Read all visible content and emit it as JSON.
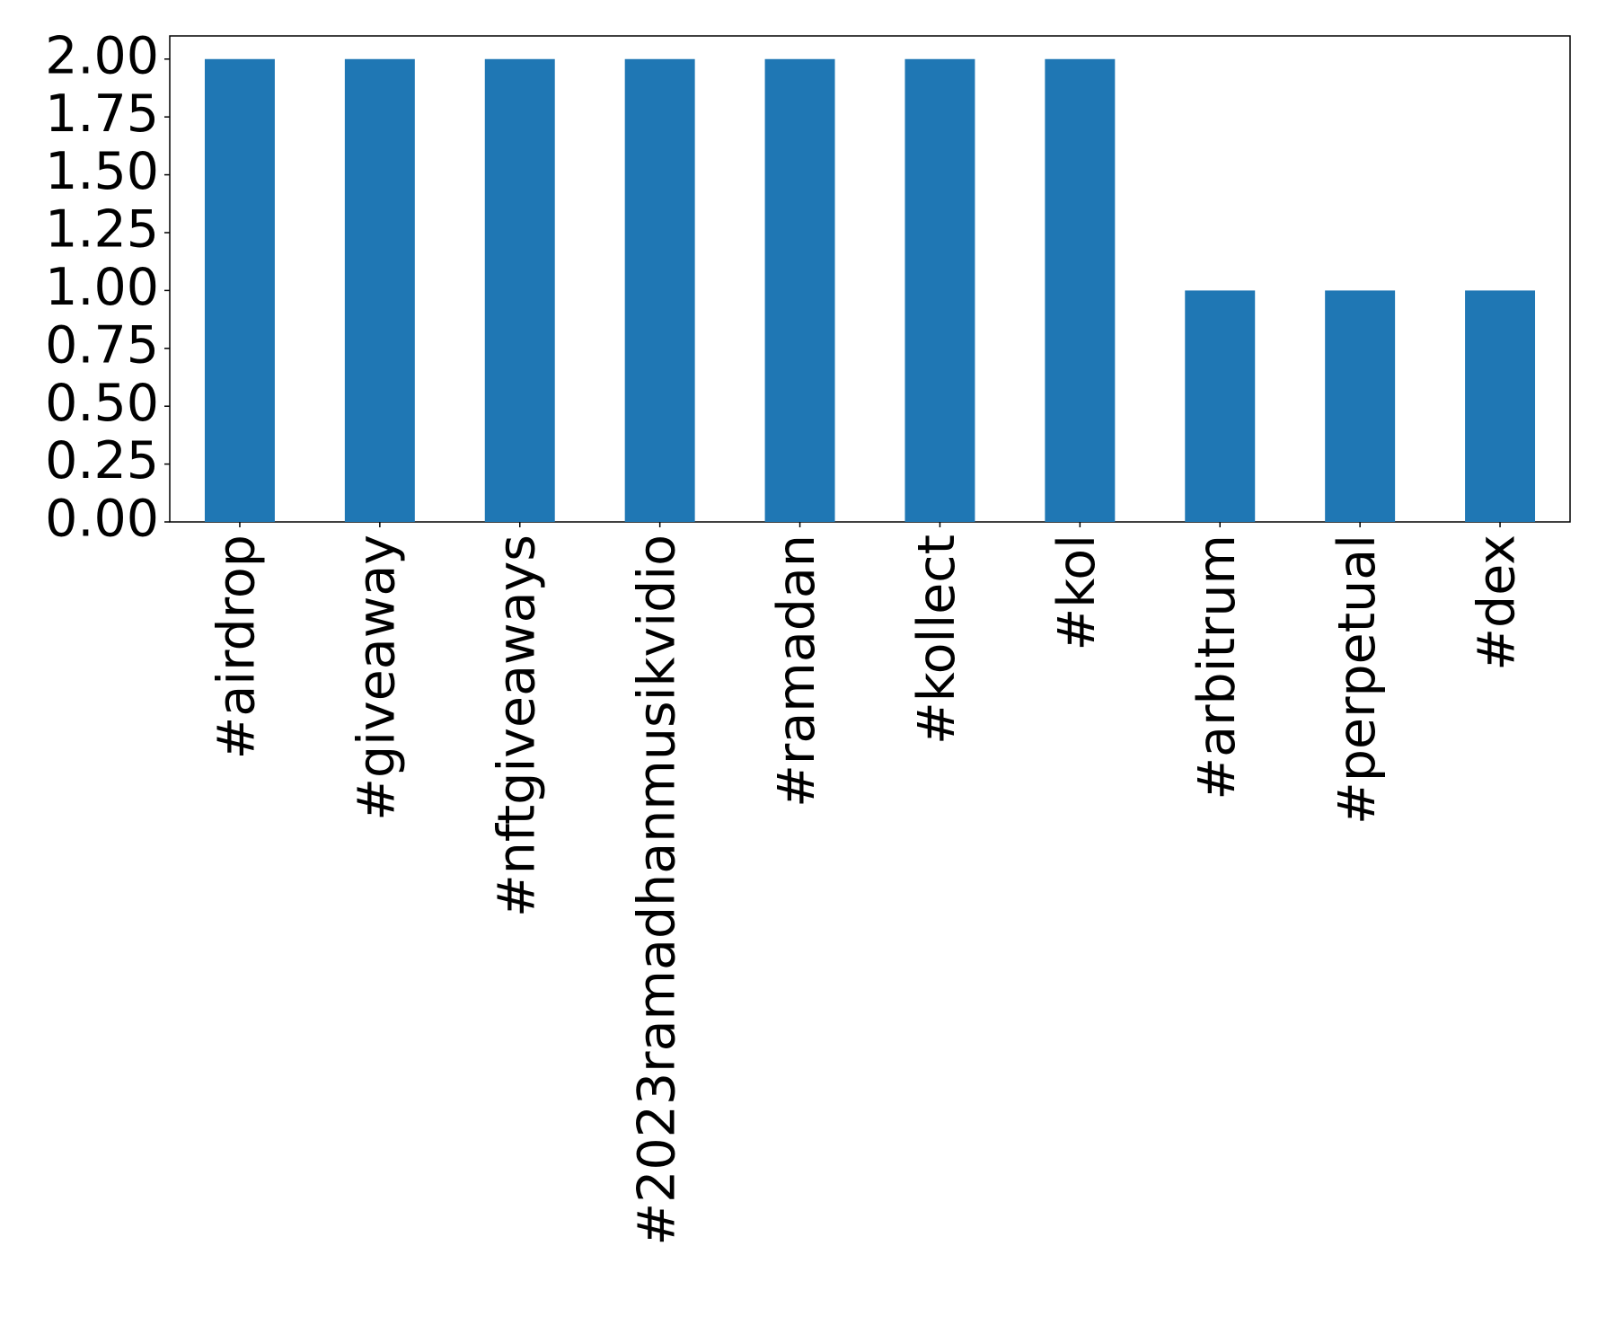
{
  "chart_data": {
    "type": "bar",
    "categories": [
      "#airdrop",
      "#giveaway",
      "#nftgiveaways",
      "#2023ramadhanmusikvidio",
      "#ramadan",
      "#kollect",
      "#kol",
      "#arbitrum",
      "#perpetual",
      "#dex"
    ],
    "values": [
      2,
      2,
      2,
      2,
      2,
      2,
      2,
      1,
      1,
      1
    ],
    "color": "#1f77b4",
    "ylim": [
      0,
      2.1
    ],
    "yticks": [
      {
        "value": 0,
        "label": "0.00"
      },
      {
        "value": 0.25,
        "label": "0.25"
      },
      {
        "value": 0.5,
        "label": "0.50"
      },
      {
        "value": 0.75,
        "label": "0.75"
      },
      {
        "value": 1,
        "label": "1.00"
      },
      {
        "value": 1.25,
        "label": "1.25"
      },
      {
        "value": 1.5,
        "label": "1.50"
      },
      {
        "value": 1.75,
        "label": "1.75"
      },
      {
        "value": 2,
        "label": "2.00"
      }
    ],
    "grid": false
  }
}
